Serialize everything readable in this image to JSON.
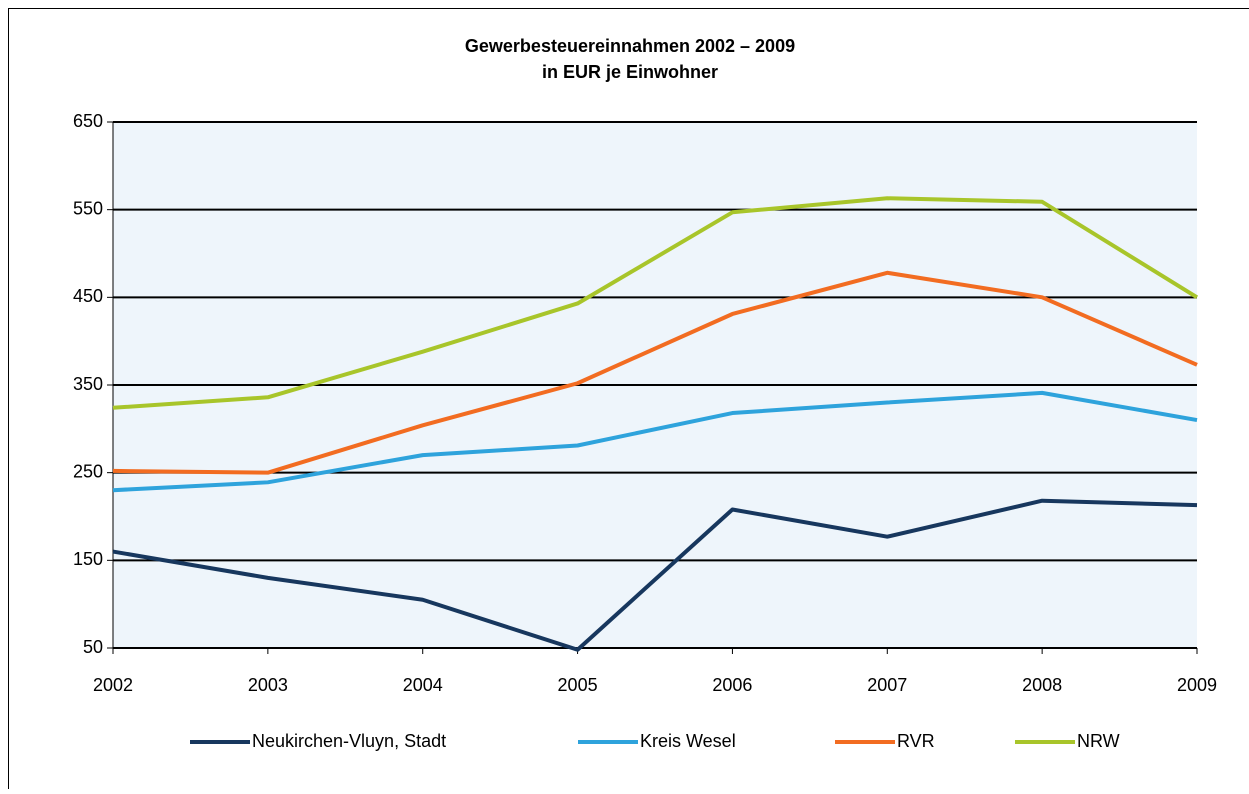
{
  "chart_data": {
    "type": "line",
    "title": "Gewerbesteuereinnahmen 2002 – 2009",
    "subtitle": "in EUR je Einwohner",
    "x": [
      2002,
      2003,
      2004,
      2005,
      2006,
      2007,
      2008,
      2009
    ],
    "xlim": [
      2002,
      2009
    ],
    "xticks": [
      2002,
      2003,
      2004,
      2005,
      2006,
      2007,
      2008,
      2009
    ],
    "ylim": [
      50,
      650
    ],
    "yticks": [
      50,
      150,
      250,
      350,
      450,
      550,
      650
    ],
    "grid": true,
    "legend": "bottom",
    "series": [
      {
        "name": "Neukirchen-Vluyn, Stadt",
        "color": "#17375e",
        "values": [
          160,
          130,
          105,
          48,
          208,
          177,
          218,
          213
        ]
      },
      {
        "name": "Kreis Wesel",
        "color": "#2ea3dc",
        "values": [
          230,
          239,
          270,
          281,
          318,
          330,
          341,
          310
        ]
      },
      {
        "name": "RVR",
        "color": "#f26c21",
        "values": [
          252,
          250,
          304,
          352,
          431,
          478,
          450,
          373
        ]
      },
      {
        "name": "NRW",
        "color": "#a8c52a",
        "values": [
          324,
          336,
          388,
          443,
          547,
          563,
          559,
          450
        ]
      }
    ]
  }
}
